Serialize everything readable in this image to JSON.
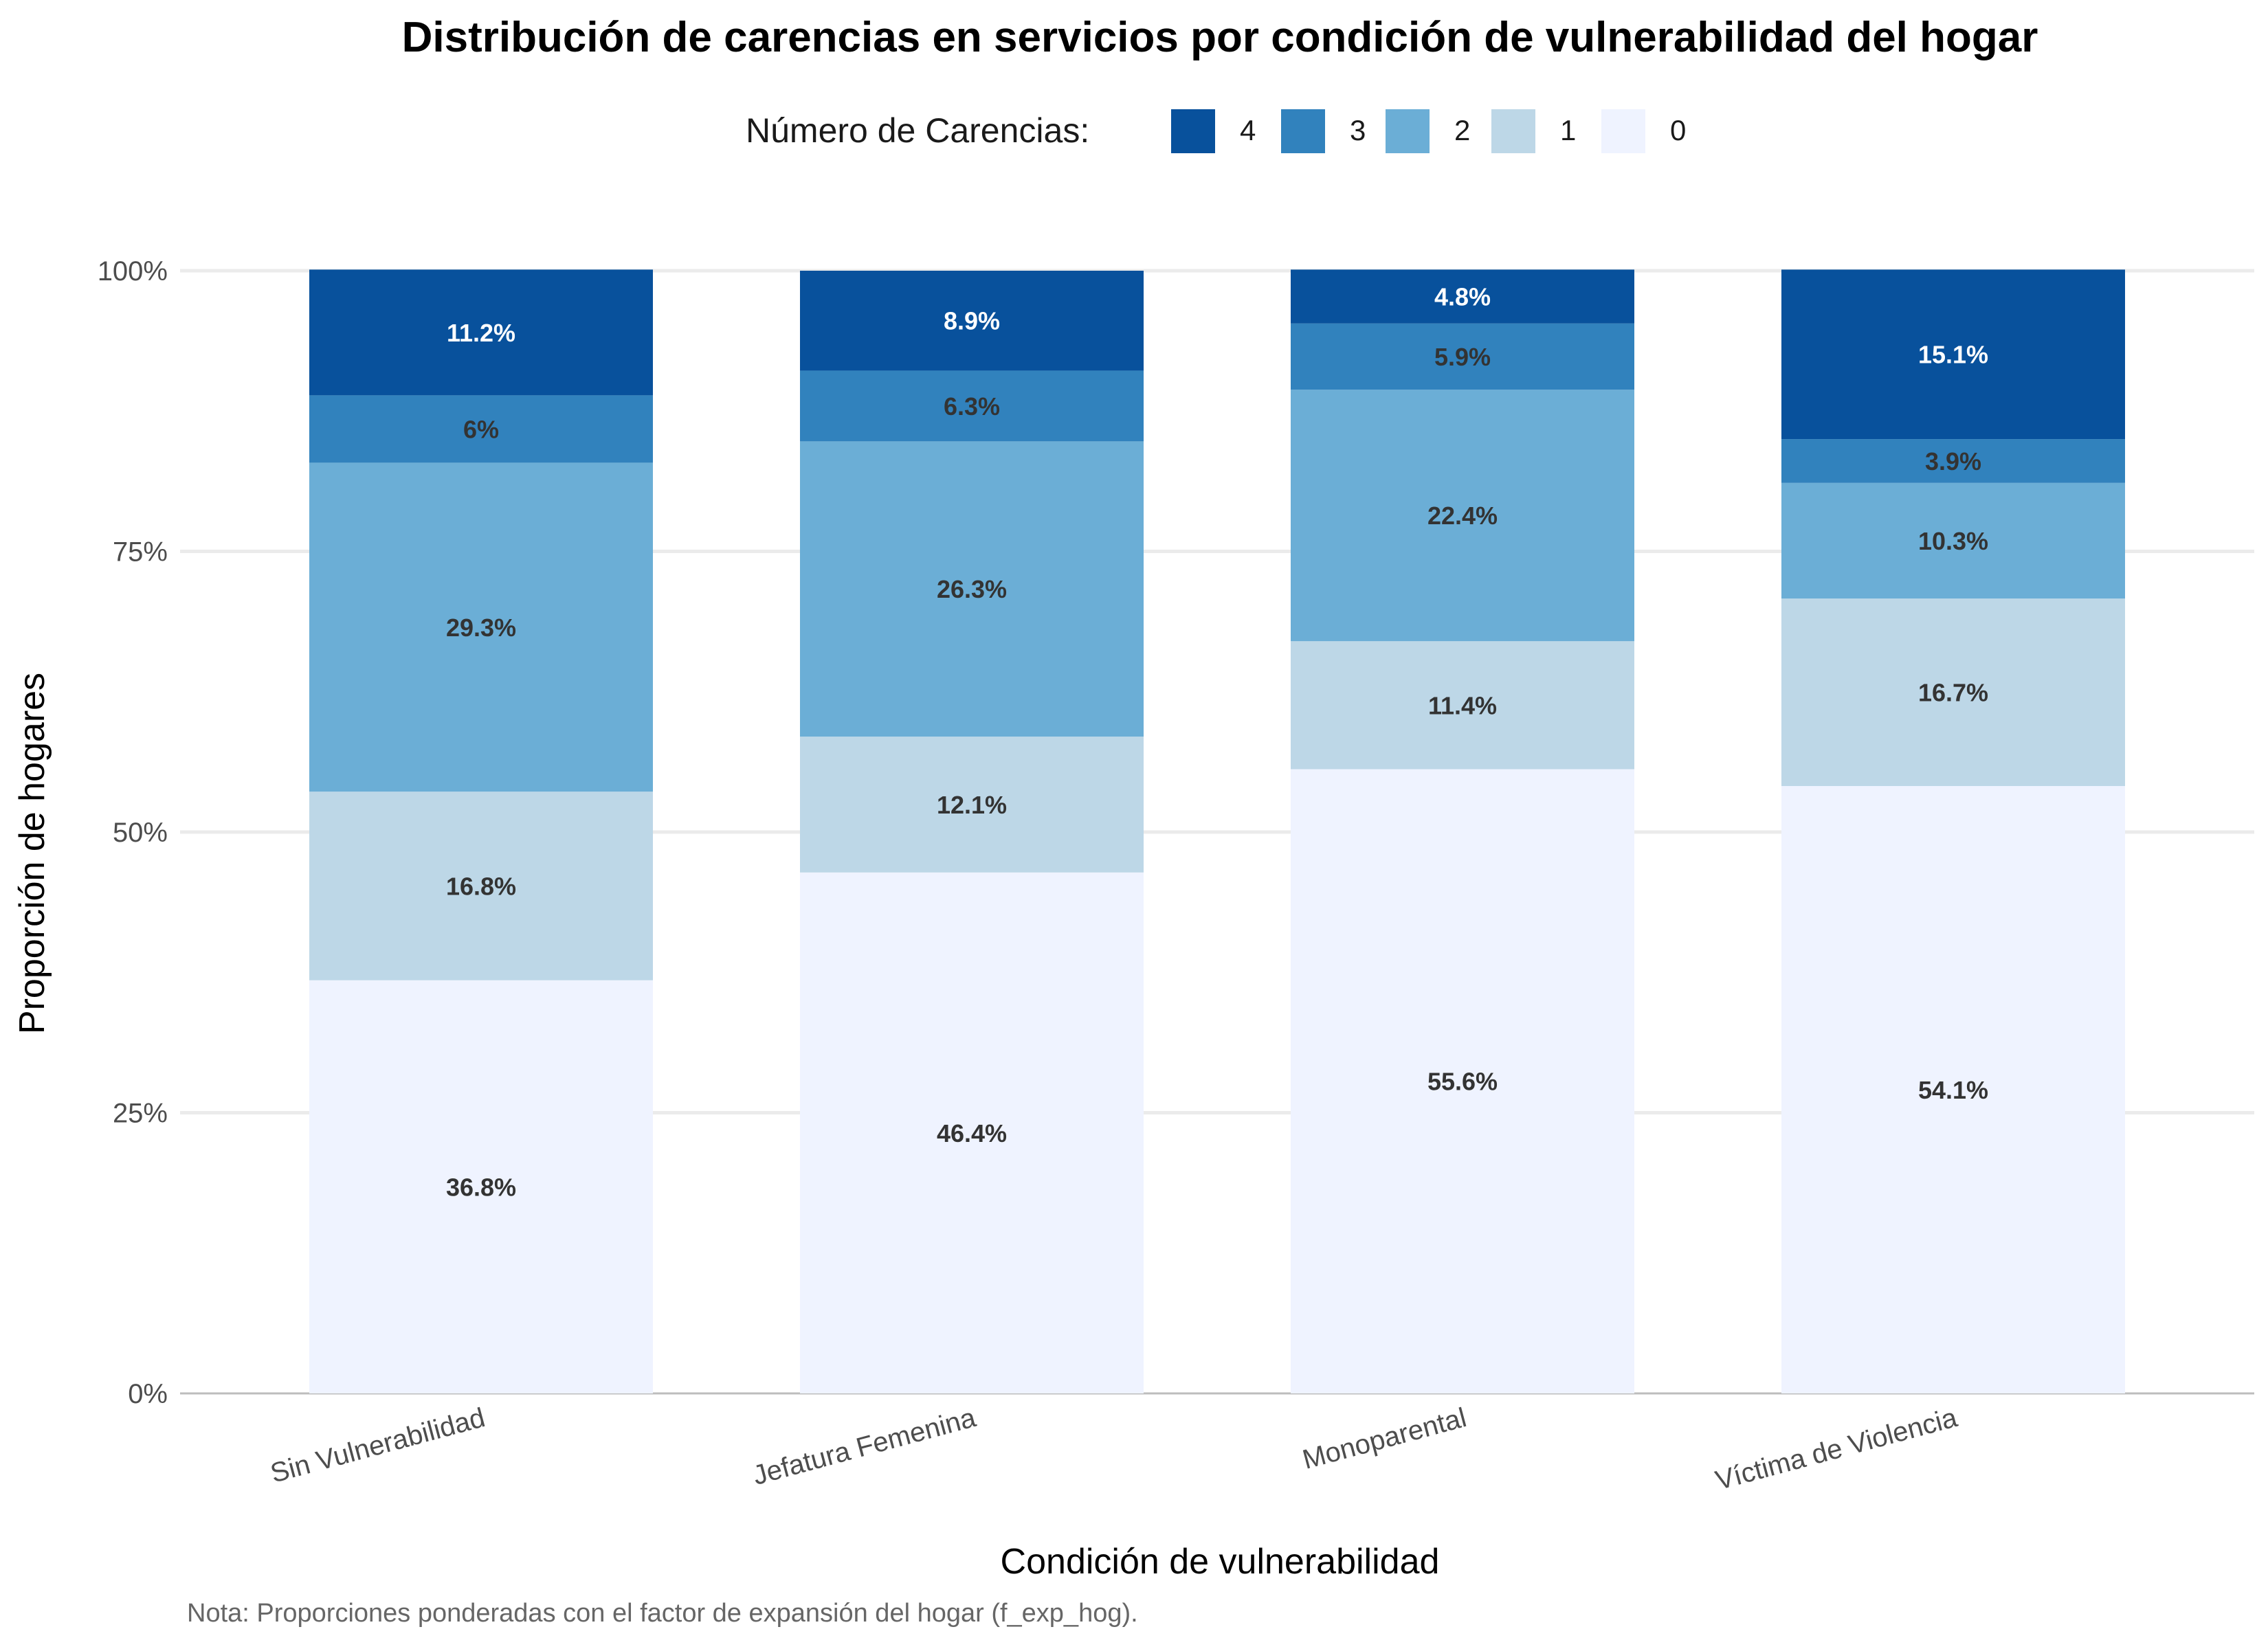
{
  "chart_data": {
    "type": "bar",
    "stacked": true,
    "title": "Distribución de carencias en servicios por condición de vulnerabilidad del hogar",
    "xlabel": "Condición de vulnerabilidad",
    "ylabel": "Proporción de hogares",
    "caption": "Nota: Proporciones ponderadas con el factor de expansión del hogar (f_exp_hog).",
    "legend": {
      "title": "Número de Carencias:",
      "position": "top"
    },
    "categories": [
      "Sin Vulnerabilidad",
      "Jefatura Femenina",
      "Monoparental",
      "Víctima de Violencia"
    ],
    "ylim": [
      0,
      100
    ],
    "y_ticks": [
      0,
      25,
      50,
      75,
      100
    ],
    "y_tick_labels": [
      "0%",
      "25%",
      "50%",
      "75%",
      "100%"
    ],
    "grid": true,
    "series": [
      {
        "name": "4",
        "color": "#08519c",
        "label_color": "#ffffff",
        "values": [
          11.2,
          8.9,
          4.8,
          15.1
        ],
        "labels": [
          "11.2%",
          "8.9%",
          "4.8%",
          "15.1%"
        ]
      },
      {
        "name": "3",
        "color": "#3182bd",
        "label_color": "#333333",
        "values": [
          6.0,
          6.3,
          5.9,
          3.9
        ],
        "labels": [
          "6%",
          "6.3%",
          "5.9%",
          "3.9%"
        ]
      },
      {
        "name": "2",
        "color": "#6baed6",
        "label_color": "#333333",
        "values": [
          29.3,
          26.3,
          22.4,
          10.3
        ],
        "labels": [
          "29.3%",
          "26.3%",
          "22.4%",
          "10.3%"
        ]
      },
      {
        "name": "1",
        "color": "#bdd7e7",
        "label_color": "#333333",
        "values": [
          16.8,
          12.1,
          11.4,
          16.7
        ],
        "labels": [
          "16.8%",
          "12.1%",
          "11.4%",
          "16.7%"
        ]
      },
      {
        "name": "0",
        "color": "#eff3ff",
        "label_color": "#333333",
        "values": [
          36.8,
          46.4,
          55.6,
          54.1
        ],
        "labels": [
          "36.8%",
          "46.4%",
          "55.6%",
          "54.1%"
        ]
      }
    ]
  }
}
